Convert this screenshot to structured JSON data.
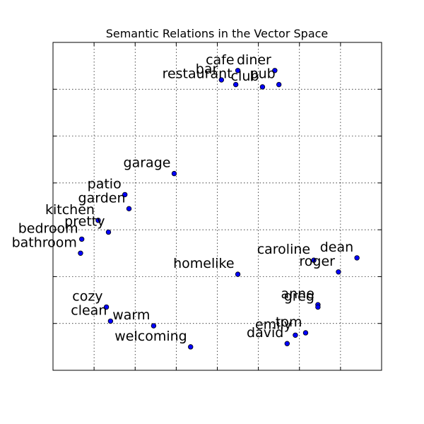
{
  "chart_data": {
    "type": "scatter",
    "title": "Semantic Relations in the Vector Space",
    "xlabel": "",
    "ylabel": "",
    "xlim": [
      0,
      8
    ],
    "ylim": [
      0,
      7
    ],
    "grid": true,
    "tick_labels_shown": false,
    "marker_color": "#0000ff",
    "points": [
      {
        "label": "cafe",
        "x": 4.5,
        "y": 6.4
      },
      {
        "label": "diner",
        "x": 5.4,
        "y": 6.4
      },
      {
        "label": "bar",
        "x": 4.1,
        "y": 6.2
      },
      {
        "label": "restaurant",
        "x": 4.45,
        "y": 6.1
      },
      {
        "label": "club",
        "x": 5.1,
        "y": 6.05
      },
      {
        "label": "pub",
        "x": 5.5,
        "y": 6.1
      },
      {
        "label": "garage",
        "x": 2.95,
        "y": 4.2
      },
      {
        "label": "patio",
        "x": 1.75,
        "y": 3.75
      },
      {
        "label": "garden",
        "x": 1.85,
        "y": 3.45
      },
      {
        "label": "kitchen",
        "x": 1.1,
        "y": 3.2
      },
      {
        "label": "pretty",
        "x": 1.35,
        "y": 2.95
      },
      {
        "label": "bedroom",
        "x": 0.7,
        "y": 2.8
      },
      {
        "label": "bathroom",
        "x": 0.67,
        "y": 2.5
      },
      {
        "label": "homelike",
        "x": 4.5,
        "y": 2.05
      },
      {
        "label": "caroline",
        "x": 6.35,
        "y": 2.35
      },
      {
        "label": "dean",
        "x": 7.4,
        "y": 2.4
      },
      {
        "label": "roger",
        "x": 6.95,
        "y": 2.1
      },
      {
        "label": "anne",
        "x": 6.45,
        "y": 1.4
      },
      {
        "label": "greg",
        "x": 6.45,
        "y": 1.35
      },
      {
        "label": "cozy",
        "x": 1.3,
        "y": 1.35
      },
      {
        "label": "clean",
        "x": 1.4,
        "y": 1.05
      },
      {
        "label": "warm",
        "x": 2.45,
        "y": 0.95
      },
      {
        "label": "tom",
        "x": 6.15,
        "y": 0.8
      },
      {
        "label": "emily",
        "x": 5.9,
        "y": 0.75
      },
      {
        "label": "david",
        "x": 5.7,
        "y": 0.57
      },
      {
        "label": "welcoming",
        "x": 3.35,
        "y": 0.5
      }
    ]
  }
}
